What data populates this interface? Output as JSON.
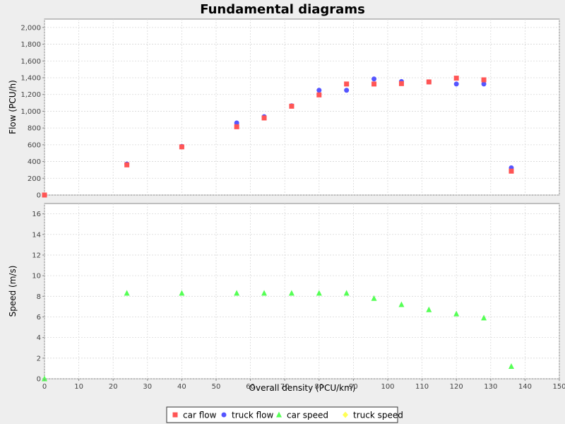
{
  "chart_data": {
    "type": "scatter",
    "title": "Fundamental diagrams",
    "xlabel": "Overall density (PCU/km)",
    "xlim": [
      0,
      150
    ],
    "xticks": [
      0,
      10,
      20,
      30,
      40,
      50,
      60,
      70,
      80,
      90,
      100,
      110,
      120,
      130,
      140,
      150
    ],
    "grid": true,
    "legend_position": "bottom-center",
    "panels": [
      {
        "name": "flow",
        "ylabel": "Flow (PCU/h)",
        "ylim": [
          0,
          2100
        ],
        "yticks": [
          0,
          200,
          400,
          600,
          800,
          1000,
          1200,
          1400,
          1600,
          1800,
          2000
        ],
        "ytick_labels": [
          "0",
          "200",
          "400",
          "600",
          "800",
          "1,000",
          "1,200",
          "1,400",
          "1,600",
          "1,800",
          "2,000"
        ],
        "series": [
          {
            "name": "truck flow",
            "color": "#5555ff",
            "marker": "circle",
            "x": [
              0,
              24,
              40,
              56,
              64,
              72,
              80,
              88,
              96,
              104,
              112,
              120,
              128,
              136
            ],
            "y": [
              0,
              370,
              580,
              860,
              935,
              1065,
              1250,
              1250,
              1385,
              1355,
              1350,
              1325,
              1325,
              325
            ]
          },
          {
            "name": "car flow",
            "color": "#ff5555",
            "marker": "square",
            "x": [
              0,
              24,
              40,
              56,
              64,
              72,
              80,
              88,
              96,
              104,
              112,
              120,
              128,
              136
            ],
            "y": [
              0,
              360,
              575,
              815,
              920,
              1060,
              1195,
              1325,
              1325,
              1330,
              1350,
              1395,
              1375,
              285
            ]
          }
        ]
      },
      {
        "name": "speed",
        "ylabel": "Speed (m/s)",
        "ylim": [
          0,
          17
        ],
        "yticks": [
          0,
          2,
          4,
          6,
          8,
          10,
          12,
          14,
          16
        ],
        "ytick_labels": [
          "0",
          "2",
          "4",
          "6",
          "8",
          "10",
          "12",
          "14",
          "16"
        ],
        "series": [
          {
            "name": "car speed",
            "color": "#55ff55",
            "marker": "triangle",
            "x": [
              0,
              24,
              40,
              56,
              64,
              72,
              80,
              88,
              96,
              104,
              112,
              120,
              128,
              136
            ],
            "y": [
              0,
              8.3,
              8.3,
              8.3,
              8.3,
              8.3,
              8.3,
              8.3,
              7.8,
              7.2,
              6.7,
              6.3,
              5.9,
              1.2
            ]
          }
        ]
      }
    ],
    "legend": [
      {
        "label": "car flow",
        "color": "#ff5555",
        "marker": "square"
      },
      {
        "label": "truck flow",
        "color": "#5555ff",
        "marker": "circle"
      },
      {
        "label": "car speed",
        "color": "#55ff55",
        "marker": "triangle"
      },
      {
        "label": "truck speed",
        "color": "#ffff55",
        "marker": "diamond"
      }
    ]
  }
}
